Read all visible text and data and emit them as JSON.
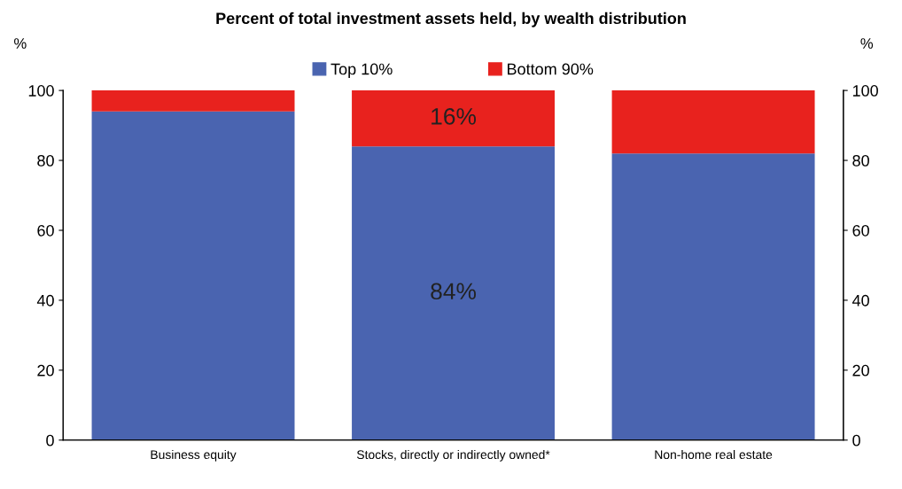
{
  "chart_data": {
    "type": "bar",
    "title": "Percent of total investment assets held, by wealth distribution",
    "categories": [
      "Business equity",
      "Stocks, directly or indirectly owned*",
      "Non-home real estate"
    ],
    "series": [
      {
        "name": "Top 10%",
        "color": "#4a64b0",
        "values": [
          94,
          84,
          82
        ],
        "value_labels": [
          null,
          "84%",
          null
        ]
      },
      {
        "name": "Bottom 90%",
        "color": "#e8221e",
        "values": [
          6,
          16,
          18
        ],
        "value_labels": [
          null,
          "16%",
          null
        ]
      }
    ],
    "stacked": true,
    "ylabel": "%",
    "y2label": "%",
    "ylim": [
      0,
      100
    ],
    "yticks": [
      0,
      20,
      40,
      60,
      80,
      100
    ],
    "y2lim": [
      0,
      100
    ],
    "y2ticks": [
      0,
      20,
      40,
      60,
      80,
      100
    ],
    "grid": false,
    "legend": "top"
  }
}
